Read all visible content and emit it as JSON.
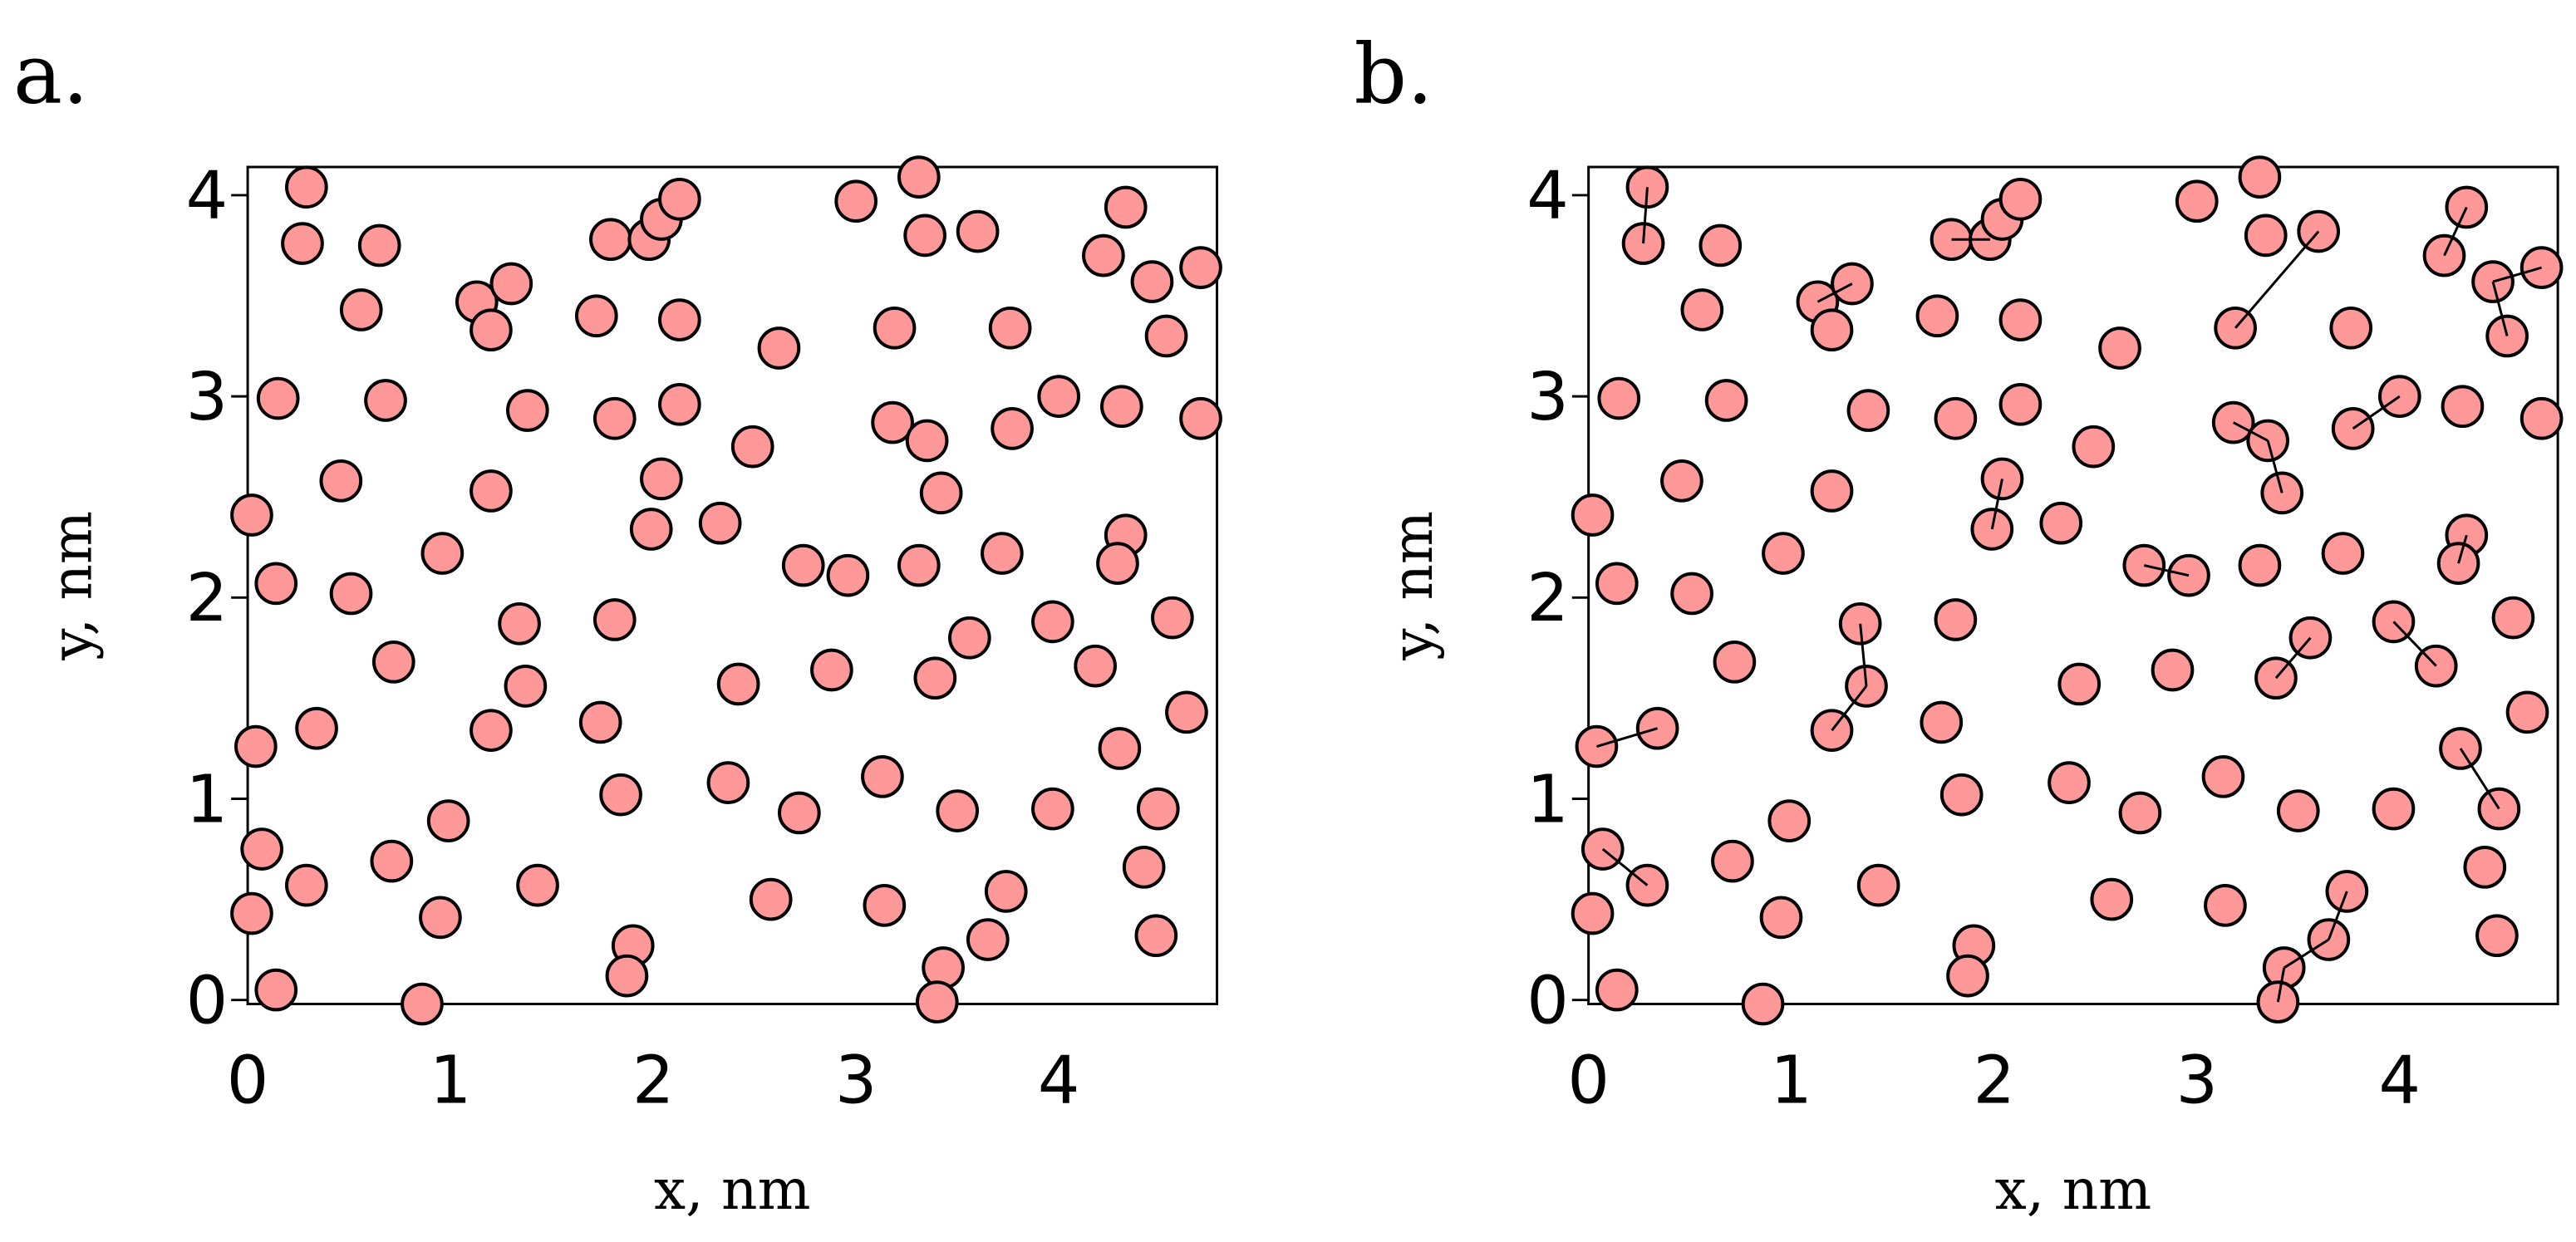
{
  "chart_data": [
    {
      "type": "scatter",
      "label": "a.",
      "x_label": "x, nm",
      "y_label": "y, nm",
      "color": "#ff9999",
      "x": [
        0.29,
        0.27,
        0.65,
        0.56,
        0.15,
        0.68,
        0.46,
        0.02,
        0.14,
        0.51,
        0.72,
        0.96,
        0.34,
        0.04,
        0.07,
        0.29,
        0.02,
        0.14,
        0.71,
        0.99,
        0.95,
        0.86,
        1.13,
        1.3,
        1.2,
        1.38,
        1.2,
        1.34,
        1.37,
        1.2,
        1.43,
        1.72,
        1.79,
        1.98,
        2.04,
        2.13,
        2.13,
        1.81,
        2.13,
        2.04,
        1.99,
        1.81,
        1.74,
        1.84,
        1.9,
        1.87,
        2.33,
        2.49,
        2.62,
        2.42,
        2.37,
        2.58,
        2.72,
        2.74,
        2.96,
        2.88,
        3.0,
        3.31,
        3.34,
        3.6,
        3.19,
        3.18,
        3.35,
        3.42,
        3.31,
        3.13,
        3.39,
        3.56,
        3.5,
        3.14,
        3.43,
        3.4,
        3.65,
        3.74,
        3.72,
        3.77,
        3.76,
        4.0,
        3.97,
        3.97,
        4.18,
        4.22,
        4.33,
        4.31,
        4.46,
        4.53,
        4.7,
        4.7,
        4.33,
        4.29,
        4.56,
        4.63,
        4.3,
        4.49,
        4.42,
        4.48
      ],
      "y": [
        4.04,
        3.76,
        3.75,
        3.43,
        2.99,
        2.98,
        2.58,
        2.41,
        2.07,
        2.02,
        1.68,
        2.22,
        1.35,
        1.26,
        0.75,
        0.57,
        0.43,
        0.05,
        0.69,
        0.89,
        0.41,
        -0.02,
        3.47,
        3.56,
        3.33,
        2.93,
        2.53,
        1.87,
        1.56,
        1.34,
        0.57,
        3.4,
        3.78,
        3.78,
        3.88,
        3.98,
        3.38,
        2.89,
        2.96,
        2.59,
        2.34,
        1.89,
        1.38,
        1.02,
        0.27,
        0.12,
        2.37,
        2.75,
        3.24,
        1.57,
        1.08,
        0.5,
        0.93,
        2.16,
        2.11,
        1.64,
        3.97,
        4.09,
        3.8,
        3.82,
        3.34,
        2.87,
        2.78,
        2.52,
        2.16,
        1.11,
        1.6,
        1.8,
        0.94,
        0.47,
        0.16,
        -0.01,
        0.3,
        0.54,
        2.22,
        2.84,
        3.34,
        3.0,
        1.88,
        0.95,
        1.66,
        3.7,
        3.94,
        2.95,
        3.57,
        3.3,
        3.64,
        2.89,
        2.31,
        2.17,
        1.9,
        1.43,
        1.25,
        0.95,
        0.66,
        0.32
      ],
      "xlim": [
        0,
        4.78
      ],
      "ylim": [
        -0.02,
        4.14
      ],
      "xticks": [
        0,
        1,
        2,
        3,
        4
      ],
      "yticks": [
        0,
        1,
        2,
        3,
        4
      ]
    },
    {
      "type": "scatter",
      "label": "b.",
      "x_label": "x, nm",
      "y_label": "y, nm",
      "color": "#ff9999",
      "x": [
        0.29,
        0.27,
        0.65,
        0.56,
        0.15,
        0.68,
        0.46,
        0.02,
        0.14,
        0.51,
        0.72,
        0.96,
        0.34,
        0.04,
        0.07,
        0.29,
        0.02,
        0.14,
        0.71,
        0.99,
        0.95,
        0.86,
        1.13,
        1.3,
        1.2,
        1.38,
        1.2,
        1.34,
        1.37,
        1.2,
        1.43,
        1.72,
        1.79,
        1.98,
        2.04,
        2.13,
        2.13,
        1.81,
        2.13,
        2.04,
        1.99,
        1.81,
        1.74,
        1.84,
        1.9,
        1.87,
        2.33,
        2.49,
        2.62,
        2.42,
        2.37,
        2.58,
        2.72,
        2.74,
        2.96,
        2.88,
        3.0,
        3.31,
        3.34,
        3.6,
        3.19,
        3.18,
        3.35,
        3.42,
        3.31,
        3.13,
        3.39,
        3.56,
        3.5,
        3.14,
        3.43,
        3.4,
        3.65,
        3.74,
        3.72,
        3.77,
        3.76,
        4.0,
        3.97,
        3.97,
        4.18,
        4.22,
        4.33,
        4.31,
        4.46,
        4.53,
        4.7,
        4.7,
        4.33,
        4.29,
        4.56,
        4.63,
        4.3,
        4.49,
        4.42,
        4.48
      ],
      "y": [
        4.04,
        3.76,
        3.75,
        3.43,
        2.99,
        2.98,
        2.58,
        2.41,
        2.07,
        2.02,
        1.68,
        2.22,
        1.35,
        1.26,
        0.75,
        0.57,
        0.43,
        0.05,
        0.69,
        0.89,
        0.41,
        -0.02,
        3.47,
        3.56,
        3.33,
        2.93,
        2.53,
        1.87,
        1.56,
        1.34,
        0.57,
        3.4,
        3.78,
        3.78,
        3.88,
        3.98,
        3.38,
        2.89,
        2.96,
        2.59,
        2.34,
        1.89,
        1.38,
        1.02,
        0.27,
        0.12,
        2.37,
        2.75,
        3.24,
        1.57,
        1.08,
        0.5,
        0.93,
        2.16,
        2.11,
        1.64,
        3.97,
        4.09,
        3.8,
        3.82,
        3.34,
        2.87,
        2.78,
        2.52,
        2.16,
        1.11,
        1.6,
        1.8,
        0.94,
        0.47,
        0.16,
        -0.01,
        0.3,
        0.54,
        2.22,
        2.84,
        3.34,
        3.0,
        1.88,
        0.95,
        1.66,
        3.7,
        3.94,
        2.95,
        3.57,
        3.3,
        3.64,
        2.89,
        2.31,
        2.17,
        1.9,
        1.43,
        1.25,
        0.95,
        0.66,
        0.32
      ],
      "bonds": [
        [
          0,
          1
        ],
        [
          32,
          33
        ],
        [
          22,
          23
        ],
        [
          59,
          60
        ],
        [
          81,
          82
        ],
        [
          84,
          85
        ],
        [
          84,
          86
        ],
        [
          61,
          62
        ],
        [
          62,
          63
        ],
        [
          75,
          77
        ],
        [
          39,
          40
        ],
        [
          53,
          54
        ],
        [
          27,
          28
        ],
        [
          28,
          29
        ],
        [
          66,
          67
        ],
        [
          78,
          80
        ],
        [
          12,
          13
        ],
        [
          14,
          15
        ],
        [
          88,
          89
        ],
        [
          92,
          93
        ],
        [
          70,
          71
        ],
        [
          70,
          72
        ],
        [
          72,
          73
        ]
      ],
      "xlim": [
        0,
        4.78
      ],
      "ylim": [
        -0.02,
        4.14
      ],
      "xticks": [
        0,
        1,
        2,
        3,
        4
      ],
      "yticks": [
        0,
        1,
        2,
        3,
        4
      ]
    }
  ]
}
